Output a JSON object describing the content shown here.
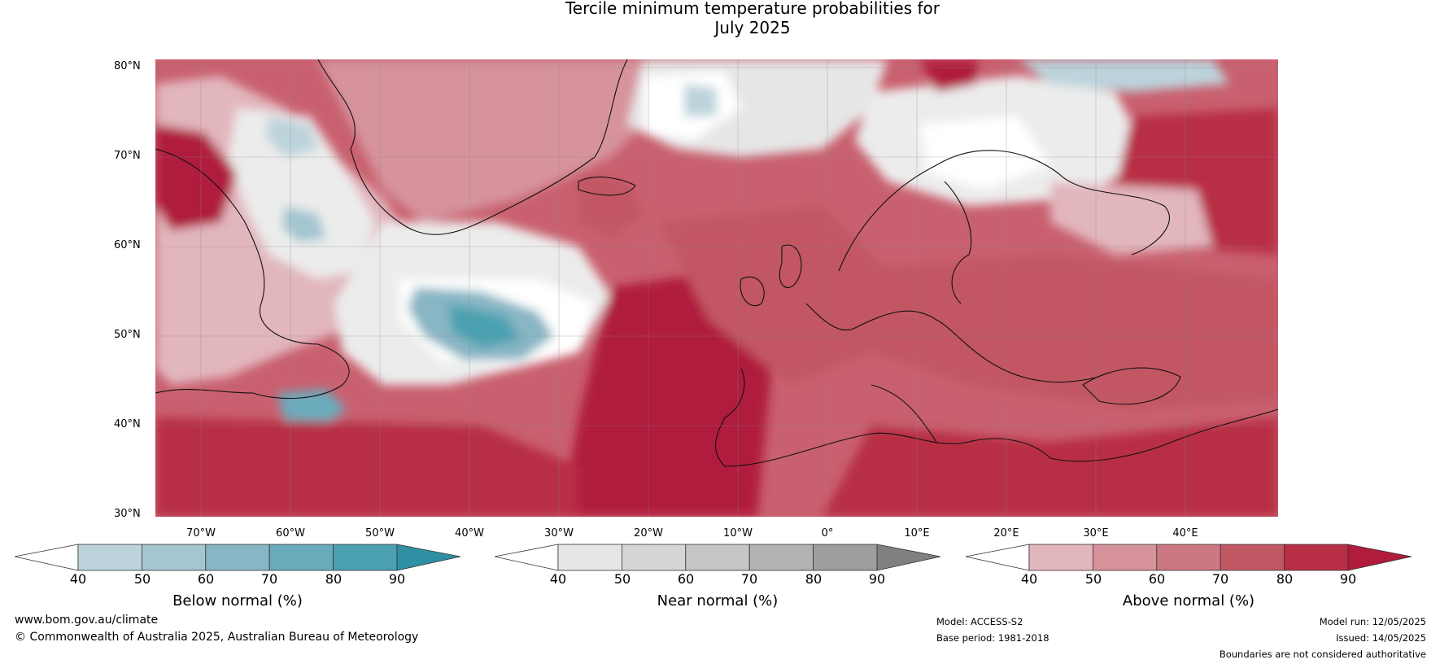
{
  "title_line1": "Tercile minimum temperature probabilities for",
  "title_line2": "July 2025",
  "lat_labels": [
    "80°N",
    "70°N",
    "60°N",
    "50°N",
    "40°N",
    "30°N"
  ],
  "lon_labels": [
    "70°W",
    "60°W",
    "50°W",
    "40°W",
    "30°W",
    "20°W",
    "10°W",
    "0°",
    "10°E",
    "20°E",
    "30°E",
    "40°E"
  ],
  "colorbars": [
    {
      "label": "Below normal (%)",
      "ticks": [
        "40",
        "50",
        "60",
        "70",
        "80",
        "90"
      ],
      "colors": [
        "#ffffff",
        "#bcd3db",
        "#a3c6d0",
        "#88b6c4",
        "#6aabbb",
        "#4ba1b1",
        "#2f8fa3"
      ]
    },
    {
      "label": "Near normal (%)",
      "ticks": [
        "40",
        "50",
        "60",
        "70",
        "80",
        "90"
      ],
      "colors": [
        "#ffffff",
        "#e6e6e6",
        "#d6d6d6",
        "#c6c6c6",
        "#b3b3b3",
        "#9e9e9e",
        "#808080"
      ]
    },
    {
      "label": "Above normal (%)",
      "ticks": [
        "40",
        "50",
        "60",
        "70",
        "80",
        "90"
      ],
      "colors": [
        "#ffffff",
        "#e2b6bd",
        "#d6939c",
        "#cc7882",
        "#c25764",
        "#b82e44",
        "#b01c3c"
      ]
    }
  ],
  "footer": {
    "website": "www.bom.gov.au/climate",
    "copyright": "© Commonwealth of Australia 2025, Australian Bureau of Meteorology",
    "model": "Model: ACCESS-S2",
    "base_period": "Base period: 1981-2018",
    "model_run": "Model run: 12/05/2025",
    "issued": "Issued: 14/05/2025",
    "disclaimer": "Boundaries are not considered authoritative"
  }
}
